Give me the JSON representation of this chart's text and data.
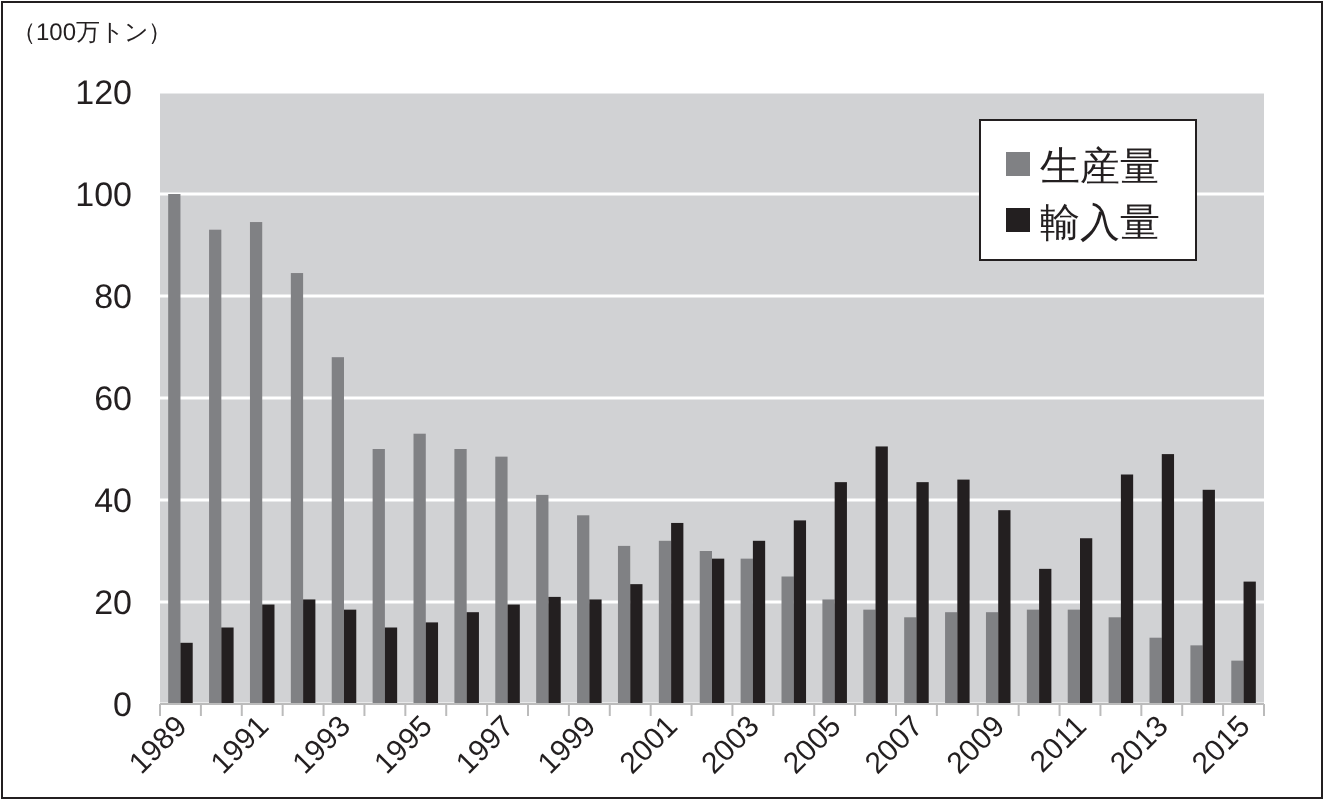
{
  "chart_data": {
    "type": "bar",
    "ylabel": "（100万トン）",
    "categories": [
      "1989",
      null,
      "1991",
      null,
      "1993",
      null,
      "1995",
      null,
      "1997",
      null,
      "1999",
      null,
      "2001",
      null,
      "2003",
      null,
      "2005",
      null,
      "2007",
      null,
      "2009",
      null,
      "2011",
      null,
      "2013",
      null,
      "2015"
    ],
    "series": [
      {
        "name": "生産量",
        "color": "#808184",
        "values": [
          100,
          93,
          94.5,
          84.5,
          68,
          50,
          53,
          50,
          48.5,
          41,
          37,
          31,
          32,
          30,
          28.5,
          25,
          20.5,
          18.5,
          17,
          18,
          18,
          18.5,
          18.5,
          17,
          13,
          11.5,
          8.5
        ]
      },
      {
        "name": "輸入量",
        "color": "#231f20",
        "values": [
          12,
          15,
          19.5,
          20.5,
          18.5,
          15,
          16,
          18,
          19.5,
          21,
          20.5,
          23.5,
          35.5,
          28.5,
          32,
          36,
          43.5,
          50.5,
          43.5,
          44,
          38,
          26.5,
          32.5,
          45,
          49,
          42,
          24
        ]
      }
    ],
    "ylim": [
      0,
      120
    ],
    "yticks": [
      0,
      20,
      40,
      60,
      80,
      100,
      120
    ],
    "grid": "y",
    "legend": "top right"
  }
}
